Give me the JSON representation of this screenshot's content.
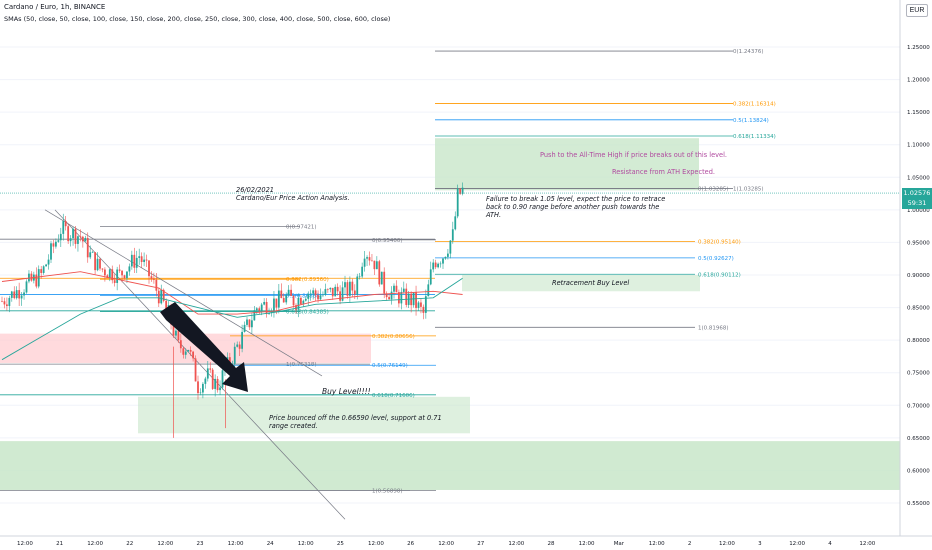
{
  "header": {
    "title": "Cardano / Euro, 1h, BINANCE",
    "indicator": "SMAs (50, close, 50, close, 100, close, 150, close, 200, close, 250, close, 300, close, 400, close, 500, close, 600, close)",
    "currency": "EUR"
  },
  "price_tag": {
    "value": "1.02576",
    "countdown": "59:31"
  },
  "annotations": {
    "analysis_title": "26/02/2021\nCardano/Eur Price Action Analysis.",
    "failure_note": "Failure to break 1.05 level, expect the price to retrace\nback to 0.90 range before another push towards the\nATH.",
    "push_note": "Push to the All-Time High if price breaks out of this level.",
    "resistance_note": "Resistance from ATH Expected.",
    "retracement_label": "Retracement Buy Level",
    "buy_level": "Buy Level!!!!",
    "bounce_note": "Price bounced off the 0.66590 level, support at 0.71\nrange created."
  },
  "chart_data": {
    "type": "candlestick",
    "title": "Cardano / Euro, 1h, BINANCE",
    "y_range": [
      0.505,
      1.275
    ],
    "y_ticks": [
      "1.25000",
      "1.20000",
      "1.15000",
      "1.10000",
      "1.05000",
      "1.00000",
      "0.95000",
      "0.90000",
      "0.85000",
      "0.80000",
      "0.75000",
      "0.70000",
      "0.65000",
      "0.60000",
      "0.55000"
    ],
    "x_ticks": [
      "12:00",
      "21",
      "12:00",
      "22",
      "12:00",
      "23",
      "12:00",
      "24",
      "12:00",
      "25",
      "12:00",
      "26",
      "12:00",
      "27",
      "12:00",
      "28",
      "12:00",
      "Mar",
      "12:00",
      "2",
      "12:00",
      "3",
      "12:00",
      "4",
      "12:00"
    ],
    "close_path": [
      [
        0,
        0.86
      ],
      [
        4,
        0.9
      ],
      [
        6,
        0.97
      ],
      [
        8,
        0.96
      ],
      [
        9,
        0.93
      ],
      [
        10,
        0.91
      ],
      [
        12,
        0.9
      ],
      [
        14,
        0.93
      ],
      [
        15.5,
        0.885
      ],
      [
        17,
        0.84
      ],
      [
        18,
        0.79
      ],
      [
        19,
        0.79
      ],
      [
        20,
        0.73
      ],
      [
        21,
        0.745
      ],
      [
        22,
        0.73
      ],
      [
        23,
        0.76
      ],
      [
        24,
        0.79
      ],
      [
        26,
        0.85
      ],
      [
        27,
        0.855
      ],
      [
        28,
        0.86
      ],
      [
        29,
        0.865
      ],
      [
        30,
        0.86
      ],
      [
        31,
        0.875
      ],
      [
        32,
        0.87
      ],
      [
        33,
        0.87
      ],
      [
        34,
        0.875
      ],
      [
        35,
        0.875
      ],
      [
        36,
        0.88
      ],
      [
        37,
        0.94
      ],
      [
        38,
        0.92
      ],
      [
        39,
        0.88
      ],
      [
        40,
        0.87
      ],
      [
        41,
        0.865
      ],
      [
        42,
        0.86
      ],
      [
        43,
        0.84
      ],
      [
        44,
        0.92
      ],
      [
        45,
        0.93
      ],
      [
        46,
        0.96
      ],
      [
        46.5,
        1.02
      ],
      [
        47,
        1.03
      ]
    ],
    "sma_red": [
      [
        0,
        0.89
      ],
      [
        8,
        0.905
      ],
      [
        16,
        0.88
      ],
      [
        20,
        0.84
      ],
      [
        24,
        0.84
      ],
      [
        28,
        0.845
      ],
      [
        32,
        0.86
      ],
      [
        38,
        0.87
      ],
      [
        44,
        0.875
      ],
      [
        47,
        0.87
      ]
    ],
    "sma_green": [
      [
        0,
        0.77
      ],
      [
        4,
        0.805
      ],
      [
        8,
        0.84
      ],
      [
        12,
        0.865
      ],
      [
        16,
        0.865
      ],
      [
        20,
        0.85
      ],
      [
        24,
        0.835
      ],
      [
        28,
        0.843
      ],
      [
        32,
        0.855
      ],
      [
        38,
        0.86
      ],
      [
        44,
        0.865
      ],
      [
        47,
        0.895
      ]
    ],
    "fib_sets": [
      {
        "levels": [
          {
            "label": "0(0.97421)",
            "value": 0.97421,
            "color": "#787b86"
          },
          {
            "label": "0.382(0.89360)",
            "value": 0.8936,
            "color": "#ff9800"
          },
          {
            "label": "0.5(0.86868)",
            "value": 0.86868,
            "color": "#2196f3"
          },
          {
            "label": "0.618(0.84385)",
            "value": 0.84385,
            "color": "#26a69a"
          },
          {
            "label": "1(0.76318)",
            "value": 0.76318,
            "color": "#787b86"
          }
        ]
      },
      {
        "levels": [
          {
            "label": "0(0.95400)",
            "value": 0.954,
            "color": "#787b86"
          },
          {
            "label": "0.382(0.80656)",
            "value": 0.80656,
            "color": "#ff9800"
          },
          {
            "label": "0.5(0.76149)",
            "value": 0.76149,
            "color": "#2196f3"
          },
          {
            "label": "0.618(0.71606)",
            "value": 0.71606,
            "color": "#26a69a"
          },
          {
            "label": "1(0.56898)",
            "value": 0.56898,
            "color": "#787b86"
          }
        ]
      },
      {
        "levels": [
          {
            "label": "0(1.24376)",
            "value": 1.24376,
            "color": "#787b86"
          },
          {
            "label": "0.382(1.16314)",
            "value": 1.16314,
            "color": "#ff9800"
          },
          {
            "label": "0.5(1.13824)",
            "value": 1.13824,
            "color": "#2196f3"
          },
          {
            "label": "0.618(1.11334)",
            "value": 1.11334,
            "color": "#26a69a"
          },
          {
            "label": "1(1.03285)",
            "value": 1.03285,
            "color": "#787b86"
          }
        ]
      },
      {
        "levels": [
          {
            "label": "0(1.03285)",
            "value": 1.03285,
            "color": "#787b86"
          },
          {
            "label": "0.382(0.95140)",
            "value": 0.9514,
            "color": "#ff9800"
          },
          {
            "label": "0.5(0.92627)",
            "value": 0.92627,
            "color": "#2196f3"
          },
          {
            "label": "0.618(0.90112)",
            "value": 0.90112,
            "color": "#26a69a"
          },
          {
            "label": "1(0.81968)",
            "value": 0.81968,
            "color": "#787b86"
          }
        ]
      }
    ],
    "current_price": 1.02576,
    "colors": {
      "up": "#26a69a",
      "down": "#ef5350",
      "sma_red": "#ef5350",
      "sma_green": "#26a69a",
      "zone_green": "#c8e6c9",
      "zone_red": "#ffcdd2",
      "price_line": "#26a69a"
    }
  }
}
